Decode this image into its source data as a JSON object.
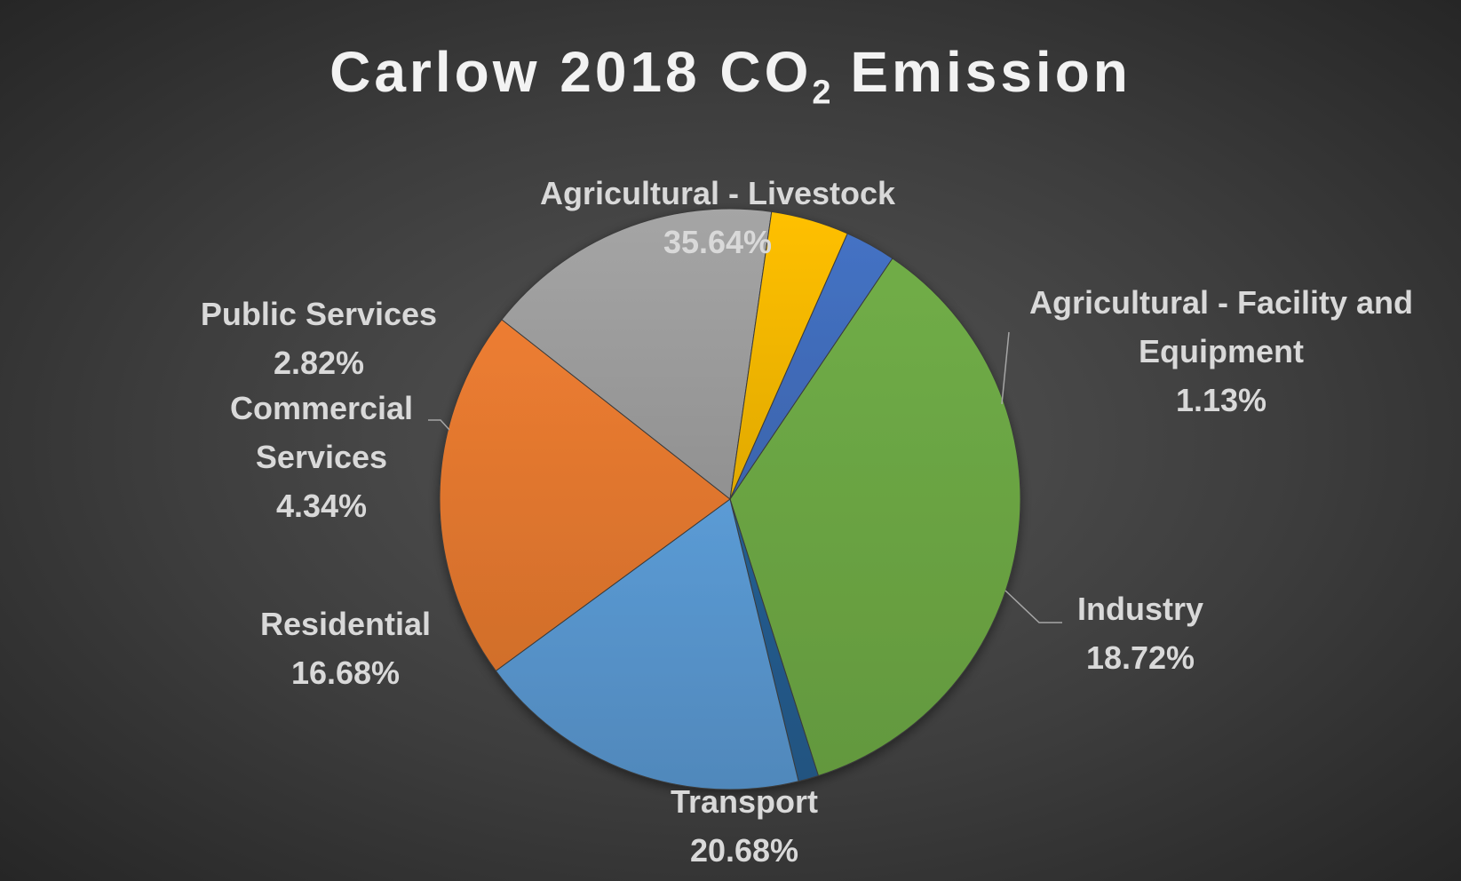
{
  "chart_data": {
    "type": "pie",
    "title": "Carlow 2018 CO",
    "title_subscript": "2",
    "title_suffix": " Emission",
    "slices": [
      {
        "name": "Agricultural - Livestock",
        "value": 35.64,
        "label": "35.64%",
        "color": "#70ad47"
      },
      {
        "name": "Agricultural - Facility and Equipment",
        "value": 1.13,
        "label": "1.13%",
        "color": "#255e91"
      },
      {
        "name": "Industry",
        "value": 18.72,
        "label": "18.72%",
        "color": "#5b9bd5"
      },
      {
        "name": "Transport",
        "value": 20.68,
        "label": "20.68%",
        "color": "#ed7d31"
      },
      {
        "name": "Residential",
        "value": 16.68,
        "label": "16.68%",
        "color": "#a5a5a5"
      },
      {
        "name": "Commercial Services",
        "value": 4.34,
        "label": "4.34%",
        "color": "#ffc000"
      },
      {
        "name": "Public Services",
        "value": 2.82,
        "label": "2.82%",
        "color": "#4472c4"
      }
    ],
    "start_angle_deg": -56,
    "legend": "none",
    "label_color": "#d9d9d9",
    "title_color": "#f2f2f2"
  }
}
